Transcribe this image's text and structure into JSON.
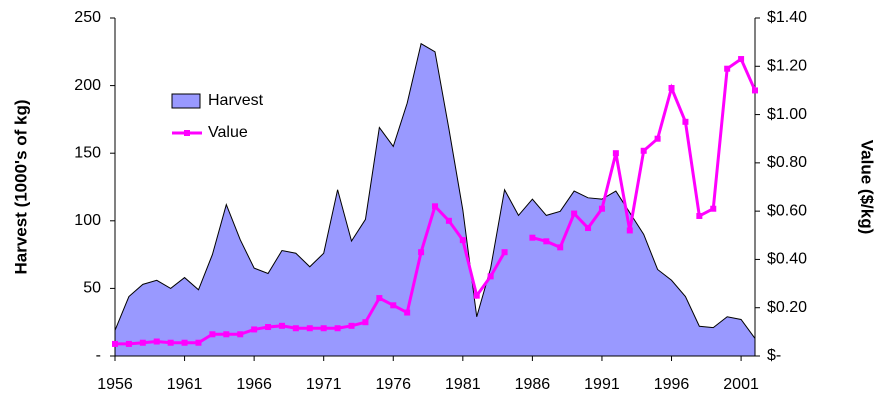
{
  "chart_data": {
    "type": "area-line",
    "ylabel": "Harvest (1000's of kg)",
    "y2label": "Value ($/kg)",
    "x": [
      1956,
      1957,
      1958,
      1959,
      1960,
      1961,
      1962,
      1963,
      1964,
      1965,
      1966,
      1967,
      1968,
      1969,
      1970,
      1971,
      1972,
      1973,
      1974,
      1975,
      1976,
      1977,
      1978,
      1979,
      1980,
      1981,
      1982,
      1983,
      1984,
      1985,
      1986,
      1987,
      1988,
      1989,
      1990,
      1991,
      1992,
      1993,
      1994,
      1995,
      1996,
      1997,
      1998,
      1999,
      2000,
      2001,
      2002
    ],
    "xlim": [
      1956,
      2002
    ],
    "xticks": [
      1956,
      1961,
      1966,
      1971,
      1976,
      1981,
      1986,
      1991,
      1996,
      2001
    ],
    "ylim": [
      0,
      250
    ],
    "yticks": [
      {
        "value": 0,
        "label": "-"
      },
      50,
      100,
      150,
      200,
      250
    ],
    "y2lim": [
      0,
      1.4
    ],
    "y2ticks": [
      {
        "value": 0,
        "label": "$-"
      },
      {
        "value": 0.2,
        "label": "$0.20"
      },
      {
        "value": 0.4,
        "label": "$0.40"
      },
      {
        "value": 0.6,
        "label": "$0.60"
      },
      {
        "value": 0.8,
        "label": "$0.80"
      },
      {
        "value": 1.0,
        "label": "$1.00"
      },
      {
        "value": 1.2,
        "label": "$1.20"
      },
      {
        "value": 1.4,
        "label": "$1.40"
      }
    ],
    "legend": "upper left",
    "series": [
      {
        "name": "Harvest",
        "kind": "area",
        "color": "#9999ff",
        "values": [
          19,
          44,
          53,
          56,
          50,
          58,
          49,
          75,
          112,
          86,
          65,
          61,
          78,
          76,
          66,
          76,
          123,
          85,
          101,
          169,
          155,
          187,
          231,
          225,
          168,
          108,
          29,
          65,
          123,
          104,
          116,
          104,
          107,
          122,
          117,
          116,
          122,
          106,
          90,
          64,
          56,
          44,
          22,
          21,
          29,
          27,
          13
        ]
      },
      {
        "name": "Value",
        "kind": "line",
        "axis": "y2",
        "color": "#ff00ff",
        "values": [
          0.05,
          0.05,
          0.055,
          0.06,
          0.055,
          0.055,
          0.055,
          0.09,
          0.09,
          0.09,
          0.11,
          0.12,
          0.125,
          0.115,
          0.115,
          0.115,
          0.115,
          0.125,
          0.14,
          0.24,
          0.21,
          0.18,
          0.43,
          0.62,
          0.56,
          0.48,
          0.25,
          0.33,
          0.43,
          null,
          0.49,
          0.475,
          0.45,
          0.59,
          0.53,
          0.61,
          0.84,
          0.52,
          0.85,
          0.9,
          1.11,
          0.97,
          0.58,
          0.61,
          1.19,
          1.23,
          1.1
        ]
      }
    ]
  }
}
